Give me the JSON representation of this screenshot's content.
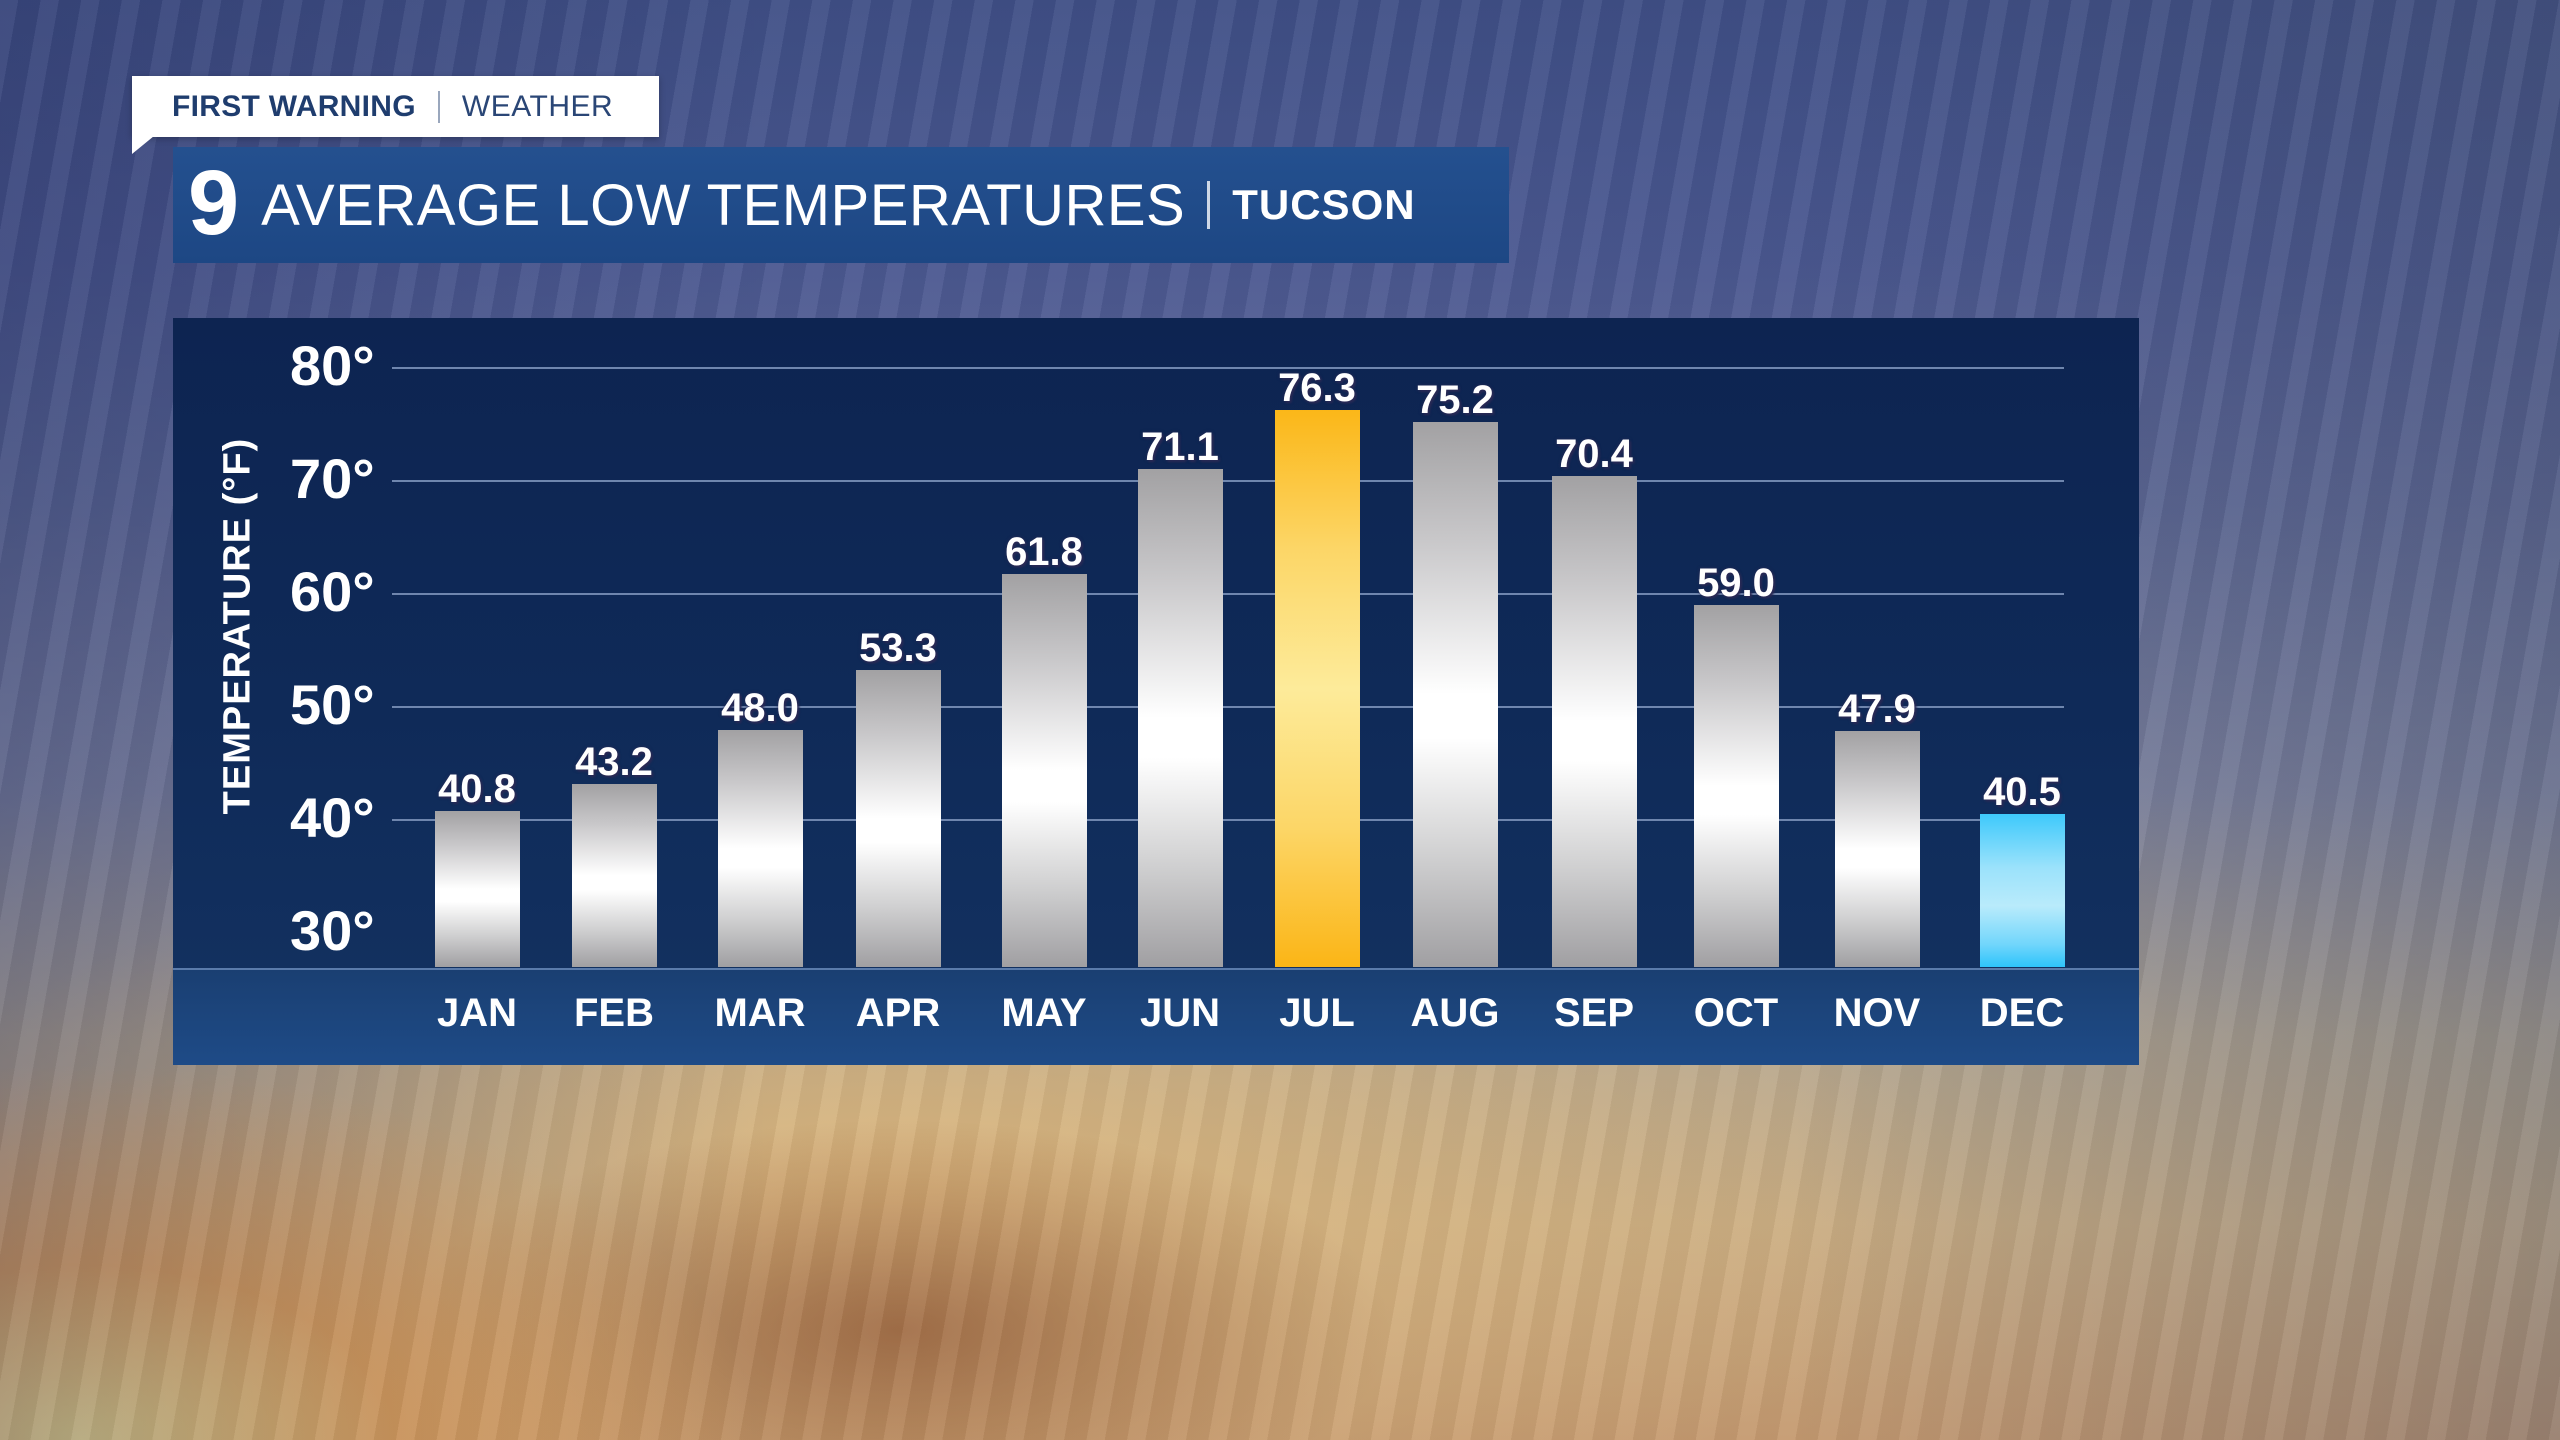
{
  "header": {
    "brand_bold": "FIRST WARNING",
    "brand_light": "WEATHER",
    "channel_logo": "9",
    "title": "AVERAGE LOW TEMPERATURES",
    "location": "TUCSON"
  },
  "colors": {
    "panel_bg": "#0f2a58",
    "title_bar": "#1d4784",
    "highlight_max": "#fbb718",
    "highlight_min": "#3ec9fb",
    "bar_default": "#c9c8ca"
  },
  "chart_data": {
    "type": "bar",
    "title": "AVERAGE LOW TEMPERATURES | TUCSON",
    "xlabel": "",
    "ylabel": "TEMPERATURE (°F)",
    "categories": [
      "JAN",
      "FEB",
      "MAR",
      "APR",
      "MAY",
      "JUN",
      "JUL",
      "AUG",
      "SEP",
      "OCT",
      "NOV",
      "DEC"
    ],
    "values": [
      40.8,
      43.2,
      48.0,
      53.3,
      61.8,
      71.1,
      76.3,
      75.2,
      70.4,
      59.0,
      47.9,
      40.5
    ],
    "value_labels": [
      "40.8",
      "43.2",
      "48.0",
      "53.3",
      "61.8",
      "71.1",
      "76.3",
      "75.2",
      "70.4",
      "59.0",
      "47.9",
      "40.5"
    ],
    "yticks": [
      "30°",
      "40°",
      "50°",
      "60°",
      "70°",
      "80°"
    ],
    "ylim": [
      27,
      80
    ],
    "grid": true,
    "highlight": {
      "max": "JUL",
      "min": "DEC"
    }
  }
}
